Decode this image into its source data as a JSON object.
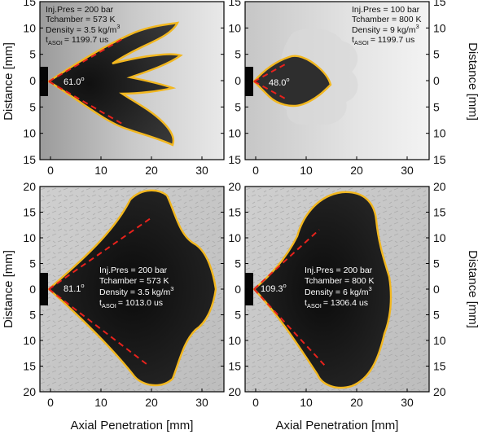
{
  "colors": {
    "outline": "#f2b71f",
    "cone": "#e8221c",
    "frame": "#000000",
    "text_dark": "#111111",
    "text_light": "#ffffff"
  },
  "axes": {
    "xlabel": "Axial Penetration [mm]",
    "ylabel": "Distance [mm]",
    "x_ticks": [
      "0",
      "10",
      "20",
      "30"
    ],
    "y_ticks_top": [
      "15",
      "10",
      "5",
      "0",
      "5",
      "10",
      "15"
    ],
    "y_ticks_bottom": [
      "20",
      "15",
      "10",
      "5",
      "0",
      "5",
      "10",
      "15",
      "20"
    ]
  },
  "panels": [
    {
      "id": "top-left",
      "lines": [
        "Inj.Pres = 200 bar",
        "Tchamber = 573 K",
        "Density = 3.5 kg/m",
        "t",
        "= 1199.7 us"
      ],
      "density_exp": "3",
      "t_sub": "ASOI",
      "angle": "61.0",
      "deg": "o"
    },
    {
      "id": "top-right",
      "lines": [
        "Inj.Pres = 100 bar",
        "Tchamber = 800 K",
        "Density = 9 kg/m",
        "t",
        "= 1199.7 us"
      ],
      "density_exp": "3",
      "t_sub": "ASOI",
      "angle": "48.0",
      "deg": "o"
    },
    {
      "id": "bottom-left",
      "lines": [
        "Inj.Pres = 200 bar",
        "Tchamber = 573 K",
        "Density = 3.5 kg/m",
        "t",
        "= 1013.0 us"
      ],
      "density_exp": "3",
      "t_sub": "ASOI",
      "angle": "81.1",
      "deg": "o"
    },
    {
      "id": "bottom-right",
      "lines": [
        "Inj.Pres = 200 bar",
        "Tchamber = 800 K",
        "Density = 6 kg/m",
        "t",
        "= 1306.4 us"
      ],
      "density_exp": "3",
      "t_sub": "ASOI",
      "angle": "109.3",
      "deg": "o"
    }
  ]
}
